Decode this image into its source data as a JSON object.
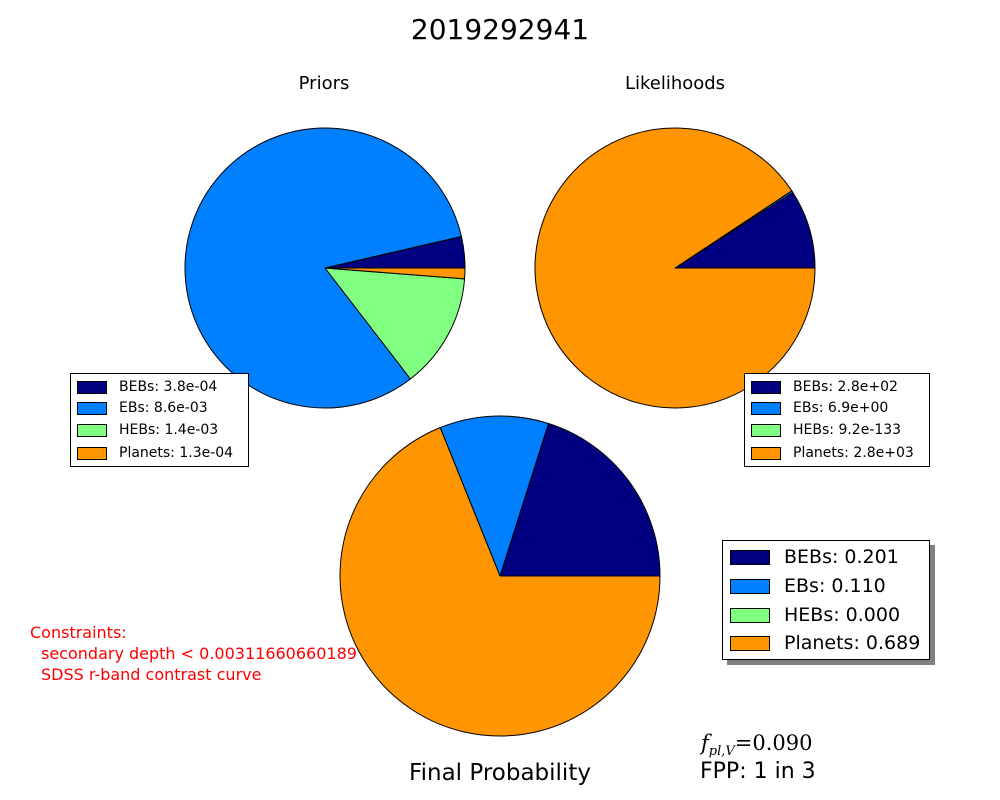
{
  "title": "2019292941",
  "colors": {
    "BEBs": "#000080",
    "EBs": "#0080ff",
    "HEBs": "#80ff80",
    "Planets": "#ff9500",
    "constraints": "#ff0000"
  },
  "chart_data": [
    {
      "type": "pie",
      "title": "Priors",
      "legend_placement": "lower-left",
      "slices": [
        {
          "name": "BEBs",
          "value": 0.00038,
          "label": "BEBs: 3.8e-04"
        },
        {
          "name": "EBs",
          "value": 0.0086,
          "label": "EBs: 8.6e-03"
        },
        {
          "name": "HEBs",
          "value": 0.0014,
          "label": "HEBs: 1.4e-03"
        },
        {
          "name": "Planets",
          "value": 0.00013,
          "label": "Planets: 1.3e-04"
        }
      ]
    },
    {
      "type": "pie",
      "title": "Likelihoods",
      "legend_placement": "lower-right",
      "slices": [
        {
          "name": "BEBs",
          "value": 280,
          "label": "BEBs: 2.8e+02"
        },
        {
          "name": "EBs",
          "value": 6.9,
          "label": "EBs: 6.9e+00"
        },
        {
          "name": "HEBs",
          "value": 9.2e-133,
          "label": "HEBs: 9.2e-133"
        },
        {
          "name": "Planets",
          "value": 2800,
          "label": "Planets: 2.8e+03"
        }
      ]
    },
    {
      "type": "pie",
      "title": "Final Probability",
      "legend_placement": "right",
      "slices": [
        {
          "name": "BEBs",
          "value": 0.201,
          "label": "BEBs: 0.201"
        },
        {
          "name": "EBs",
          "value": 0.11,
          "label": "EBs: 0.110"
        },
        {
          "name": "HEBs",
          "value": 0.0,
          "label": "HEBs: 0.000"
        },
        {
          "name": "Planets",
          "value": 0.689,
          "label": "Planets: 0.689"
        }
      ]
    }
  ],
  "constraints": {
    "heading": "Constraints:",
    "items": [
      "secondary depth < 0.00311660660189",
      "SDSS r-band contrast curve"
    ]
  },
  "fpl": {
    "symbol": "f",
    "subscript": "pl,V",
    "value": "=0.090"
  },
  "fpp": "FPP: 1 in 3"
}
